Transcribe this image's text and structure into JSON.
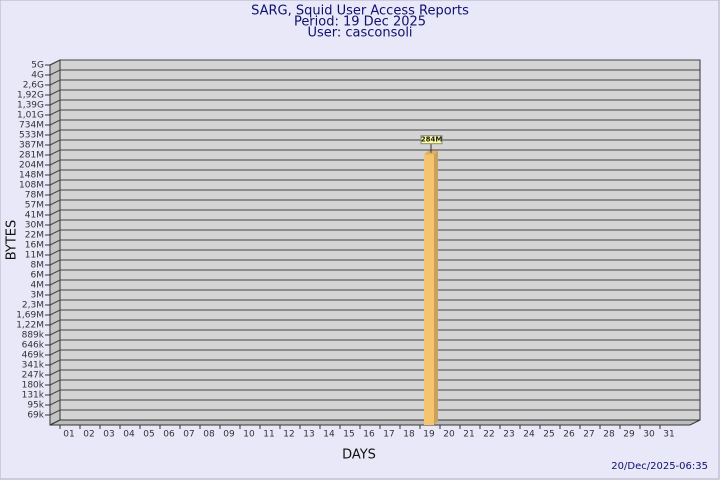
{
  "chart_data": {
    "type": "bar",
    "title": "SARG, Squid User Access Reports",
    "subtitle": [
      "Period: 19 Dec 2025",
      "User: casconsoli"
    ],
    "xlabel": "DAYS",
    "ylabel": "BYTES",
    "footer": "20/Dec/2025-06:35",
    "categories": [
      "01",
      "02",
      "03",
      "04",
      "05",
      "06",
      "07",
      "08",
      "09",
      "10",
      "11",
      "12",
      "13",
      "14",
      "15",
      "16",
      "17",
      "18",
      "19",
      "20",
      "21",
      "22",
      "23",
      "24",
      "25",
      "26",
      "27",
      "28",
      "29",
      "30",
      "31"
    ],
    "values": [
      null,
      null,
      null,
      null,
      null,
      null,
      null,
      null,
      null,
      null,
      null,
      null,
      null,
      null,
      null,
      null,
      null,
      null,
      284000000,
      null,
      null,
      null,
      null,
      null,
      null,
      null,
      null,
      null,
      null,
      null,
      null
    ],
    "value_labels": [
      null,
      null,
      null,
      null,
      null,
      null,
      null,
      null,
      null,
      null,
      null,
      null,
      null,
      null,
      null,
      null,
      null,
      null,
      "284M",
      null,
      null,
      null,
      null,
      null,
      null,
      null,
      null,
      null,
      null,
      null,
      null
    ],
    "color": "#f5c46e",
    "ylim": [
      0,
      5000000000
    ],
    "yticks": [
      {
        "value": 69000,
        "label": "69k"
      },
      {
        "value": 95000,
        "label": "95k"
      },
      {
        "value": 131000,
        "label": "131k"
      },
      {
        "value": 180000,
        "label": "180k"
      },
      {
        "value": 247000,
        "label": "247k"
      },
      {
        "value": 341000,
        "label": "341k"
      },
      {
        "value": 469000,
        "label": "469k"
      },
      {
        "value": 646000,
        "label": "646k"
      },
      {
        "value": 889000,
        "label": "889k"
      },
      {
        "value": 1220000,
        "label": "1,22M"
      },
      {
        "value": 1690000,
        "label": "1,69M"
      },
      {
        "value": 2300000,
        "label": "2,3M"
      },
      {
        "value": 3000000,
        "label": "3M"
      },
      {
        "value": 4000000,
        "label": "4M"
      },
      {
        "value": 6000000,
        "label": "6M"
      },
      {
        "value": 8000000,
        "label": "8M"
      },
      {
        "value": 11000000,
        "label": "11M"
      },
      {
        "value": 16000000,
        "label": "16M"
      },
      {
        "value": 22000000,
        "label": "22M"
      },
      {
        "value": 30000000,
        "label": "30M"
      },
      {
        "value": 41000000,
        "label": "41M"
      },
      {
        "value": 57000000,
        "label": "57M"
      },
      {
        "value": 78000000,
        "label": "78M"
      },
      {
        "value": 108000000,
        "label": "108M"
      },
      {
        "value": 148000000,
        "label": "148M"
      },
      {
        "value": 204000000,
        "label": "204M"
      },
      {
        "value": 281000000,
        "label": "281M"
      },
      {
        "value": 387000000,
        "label": "387M"
      },
      {
        "value": 533000000,
        "label": "533M"
      },
      {
        "value": 734000000,
        "label": "734M"
      },
      {
        "value": 1010000000,
        "label": "1,01G"
      },
      {
        "value": 1390000000,
        "label": "1,39G"
      },
      {
        "value": 1920000000,
        "label": "1,92G"
      },
      {
        "value": 2600000000,
        "label": "2,6G"
      },
      {
        "value": 4000000000,
        "label": "4G"
      },
      {
        "value": 5000000000,
        "label": "5G"
      }
    ],
    "grid": true
  }
}
